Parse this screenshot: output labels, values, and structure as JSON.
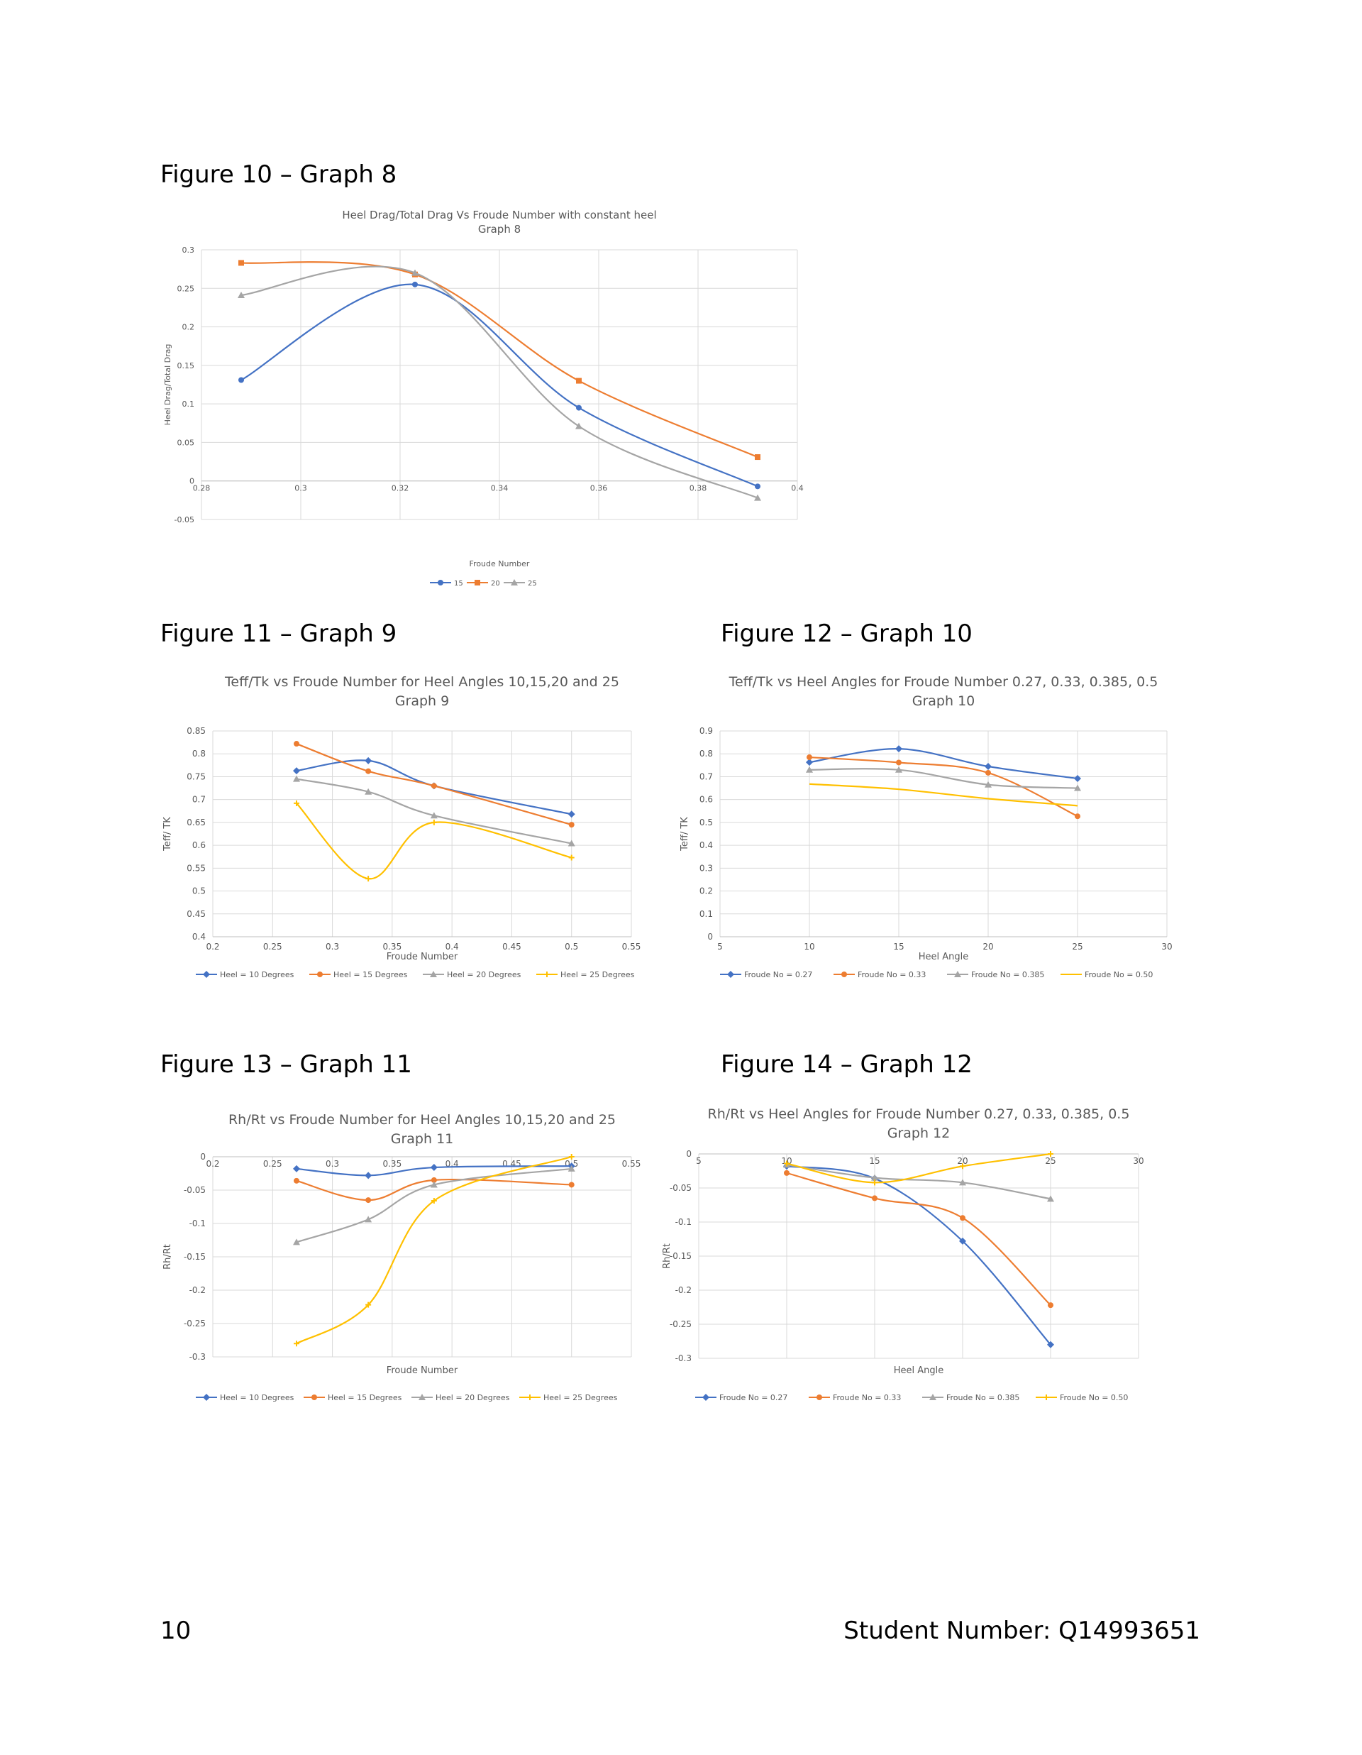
{
  "captions": {
    "fig10": "Figure 10 – Graph 8",
    "fig11": "Figure 11 – Graph 9",
    "fig12": "Figure 12 – Graph 10",
    "fig13": "Figure 13 – Graph 11",
    "fig14": "Figure 14 – Graph 12"
  },
  "footer": {
    "page_number": "10",
    "student_number": "Student Number: Q14993651"
  },
  "colors": {
    "blue": "#4472C4",
    "orange": "#ED7D31",
    "gray": "#A5A5A5",
    "yellow": "#FFC000"
  },
  "chart_data": [
    {
      "id": "graph8",
      "type": "line",
      "title": [
        "Heel Drag/Total Drag Vs Froude Number with constant heel",
        "Graph 8"
      ],
      "xlabel": "Froude Number",
      "ylabel": "Heel Drag/Total Drag",
      "xlim": [
        0.28,
        0.4
      ],
      "xticks": [
        0.28,
        0.3,
        0.32,
        0.34,
        0.36,
        0.38,
        0.4
      ],
      "ylim": [
        -0.05,
        0.3
      ],
      "yticks": [
        -0.05,
        0,
        0.05,
        0.1,
        0.15,
        0.2,
        0.25,
        0.3
      ],
      "grid": true,
      "legend": "bottom",
      "series": [
        {
          "name": "15",
          "color": "#4472C4",
          "marker": "circle",
          "x": [
            0.288,
            0.323,
            0.356,
            0.392
          ],
          "y": [
            0.131,
            0.255,
            0.095,
            -0.007
          ]
        },
        {
          "name": "20",
          "color": "#ED7D31",
          "marker": "square",
          "x": [
            0.288,
            0.323,
            0.356,
            0.392
          ],
          "y": [
            0.283,
            0.268,
            0.13,
            0.031
          ]
        },
        {
          "name": "25",
          "color": "#A5A5A5",
          "marker": "triangle",
          "x": [
            0.288,
            0.323,
            0.356,
            0.392
          ],
          "y": [
            0.241,
            0.27,
            0.071,
            -0.022
          ]
        }
      ]
    },
    {
      "id": "graph9",
      "type": "line",
      "title": [
        "Teff/Tk vs Froude Number for Heel Angles 10,15,20 and 25",
        "Graph 9"
      ],
      "xlabel": "Froude Number",
      "ylabel": "Teff/ TK",
      "xlim": [
        0.2,
        0.55
      ],
      "xticks": [
        0.2,
        0.25,
        0.3,
        0.35,
        0.4,
        0.45,
        0.5,
        0.55
      ],
      "ylim": [
        0.4,
        0.85
      ],
      "yticks": [
        0.4,
        0.45,
        0.5,
        0.55,
        0.6,
        0.65,
        0.7,
        0.75,
        0.8,
        0.85
      ],
      "grid": true,
      "legend": "bottom",
      "series": [
        {
          "name": "Heel = 10 Degrees",
          "color": "#4472C4",
          "marker": "diamond",
          "x": [
            0.27,
            0.33,
            0.385,
            0.5
          ],
          "y": [
            0.763,
            0.785,
            0.73,
            0.668
          ]
        },
        {
          "name": "Heel = 15 Degrees",
          "color": "#ED7D31",
          "marker": "circle",
          "x": [
            0.27,
            0.33,
            0.385,
            0.5
          ],
          "y": [
            0.822,
            0.762,
            0.73,
            0.645
          ]
        },
        {
          "name": "Heel = 20 Degrees",
          "color": "#A5A5A5",
          "marker": "triangle",
          "x": [
            0.27,
            0.33,
            0.385,
            0.5
          ],
          "y": [
            0.745,
            0.717,
            0.665,
            0.604
          ]
        },
        {
          "name": "Heel = 25 Degrees",
          "color": "#FFC000",
          "marker": "cross",
          "x": [
            0.27,
            0.33,
            0.385,
            0.5
          ],
          "y": [
            0.692,
            0.527,
            0.65,
            0.573
          ]
        }
      ]
    },
    {
      "id": "graph10",
      "type": "line",
      "title": [
        "Teff/Tk vs Heel Angles for Froude Number 0.27, 0.33, 0.385, 0.5",
        "Graph 10"
      ],
      "xlabel": "Heel Angle",
      "ylabel": "Teff/ TK",
      "xlim": [
        5,
        30
      ],
      "xticks": [
        5,
        10,
        15,
        20,
        25,
        30
      ],
      "ylim": [
        0,
        0.9
      ],
      "yticks": [
        0,
        0.1,
        0.2,
        0.3,
        0.4,
        0.5,
        0.6,
        0.7,
        0.8,
        0.9
      ],
      "grid": true,
      "legend": "bottom",
      "series": [
        {
          "name": "Froude No = 0.27",
          "color": "#4472C4",
          "marker": "diamond",
          "x": [
            10,
            15,
            20,
            25
          ],
          "y": [
            0.763,
            0.822,
            0.745,
            0.692
          ]
        },
        {
          "name": "Froude No = 0.33",
          "color": "#ED7D31",
          "marker": "circle",
          "x": [
            10,
            15,
            20,
            25
          ],
          "y": [
            0.785,
            0.762,
            0.717,
            0.527
          ]
        },
        {
          "name": "Froude No = 0.385",
          "color": "#A5A5A5",
          "marker": "triangle",
          "x": [
            10,
            15,
            20,
            25
          ],
          "y": [
            0.73,
            0.73,
            0.665,
            0.65
          ]
        },
        {
          "name": "Froude No = 0.50",
          "color": "#FFC000",
          "marker": "none",
          "x": [
            10,
            15,
            20,
            25
          ],
          "y": [
            0.668,
            0.645,
            0.604,
            0.573
          ]
        }
      ]
    },
    {
      "id": "graph11",
      "type": "line",
      "title": [
        "Rh/Rt vs Froude Number for Heel Angles 10,15,20 and 25",
        "Graph 11"
      ],
      "xlabel": "Froude Number",
      "ylabel": "Rh/Rt",
      "xlim": [
        0.2,
        0.55
      ],
      "xticks": [
        0.2,
        0.25,
        0.3,
        0.35,
        0.4,
        0.45,
        0.5,
        0.55
      ],
      "ylim": [
        -0.3,
        0
      ],
      "yticks": [
        -0.3,
        -0.25,
        -0.2,
        -0.15,
        -0.1,
        -0.05,
        0
      ],
      "grid": true,
      "legend": "bottom",
      "series": [
        {
          "name": "Heel = 10 Degrees",
          "color": "#4472C4",
          "marker": "diamond",
          "x": [
            0.27,
            0.33,
            0.385,
            0.5
          ],
          "y": [
            -0.018,
            -0.028,
            -0.016,
            -0.014
          ]
        },
        {
          "name": "Heel = 15 Degrees",
          "color": "#ED7D31",
          "marker": "circle",
          "x": [
            0.27,
            0.33,
            0.385,
            0.5
          ],
          "y": [
            -0.036,
            -0.065,
            -0.035,
            -0.042
          ]
        },
        {
          "name": "Heel = 20 Degrees",
          "color": "#A5A5A5",
          "marker": "triangle",
          "x": [
            0.27,
            0.33,
            0.385,
            0.5
          ],
          "y": [
            -0.128,
            -0.094,
            -0.042,
            -0.018
          ]
        },
        {
          "name": "Heel = 25 Degrees",
          "color": "#FFC000",
          "marker": "cross",
          "x": [
            0.27,
            0.33,
            0.385,
            0.5
          ],
          "y": [
            -0.28,
            -0.222,
            -0.066,
            0.0
          ]
        }
      ]
    },
    {
      "id": "graph12",
      "type": "line",
      "title": [
        "Rh/Rt vs Heel Angles for Froude Number 0.27, 0.33, 0.385, 0.5",
        "Graph 12"
      ],
      "xlabel": "Heel Angle",
      "ylabel": "Rh/Rt",
      "xlim": [
        5,
        30
      ],
      "xticks": [
        5,
        10,
        15,
        20,
        25,
        30
      ],
      "ylim": [
        -0.3,
        0
      ],
      "yticks": [
        -0.3,
        -0.25,
        -0.2,
        -0.15,
        -0.1,
        -0.05,
        0
      ],
      "grid": true,
      "legend": "bottom",
      "series": [
        {
          "name": "Froude No = 0.27",
          "color": "#4472C4",
          "marker": "diamond",
          "x": [
            10,
            15,
            20,
            25
          ],
          "y": [
            -0.018,
            -0.036,
            -0.128,
            -0.28
          ]
        },
        {
          "name": "Froude No = 0.33",
          "color": "#ED7D31",
          "marker": "circle",
          "x": [
            10,
            15,
            20,
            25
          ],
          "y": [
            -0.028,
            -0.065,
            -0.094,
            -0.222
          ]
        },
        {
          "name": "Froude No = 0.385",
          "color": "#A5A5A5",
          "marker": "triangle",
          "x": [
            10,
            15,
            20,
            25
          ],
          "y": [
            -0.016,
            -0.035,
            -0.042,
            -0.066
          ]
        },
        {
          "name": "Froude No = 0.50",
          "color": "#FFC000",
          "marker": "cross",
          "x": [
            10,
            15,
            20,
            25
          ],
          "y": [
            -0.014,
            -0.042,
            -0.018,
            0.0
          ]
        }
      ]
    }
  ]
}
